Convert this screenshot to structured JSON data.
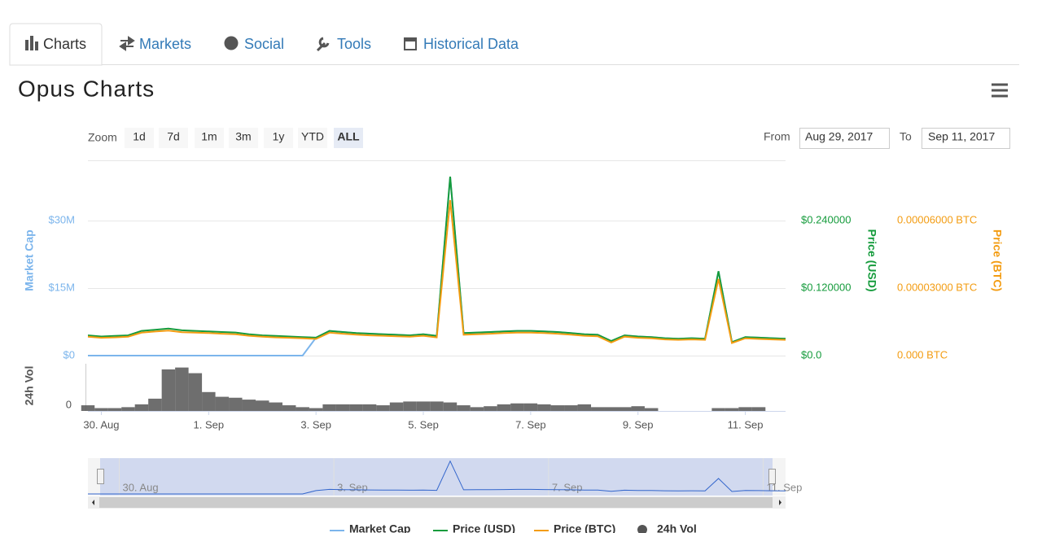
{
  "tabs": [
    "Charts",
    "Markets",
    "Social",
    "Tools",
    "Historical Data"
  ],
  "title": "Opus Charts",
  "zoom": {
    "label": "Zoom",
    "buttons": [
      "1d",
      "7d",
      "1m",
      "3m",
      "1y",
      "YTD",
      "ALL"
    ]
  },
  "range": {
    "from_label": "From",
    "from": "Aug 29, 2017",
    "to_label": "To",
    "to": "Sep 11, 2017"
  },
  "chart_data": {
    "type": "line",
    "grid": true,
    "ylabel": "Market Cap",
    "y2label": "Price (USD)",
    "y3label": "Price (BTC)",
    "y4label": "24h Vol",
    "categories": [
      null,
      "30. Aug",
      null,
      null,
      null,
      null,
      null,
      null,
      null,
      "1. Sep",
      null,
      null,
      null,
      null,
      null,
      null,
      null,
      "3. Sep",
      null,
      null,
      null,
      null,
      null,
      null,
      null,
      "5. Sep",
      null,
      null,
      null,
      null,
      null,
      null,
      null,
      "7. Sep",
      null,
      null,
      null,
      null,
      null,
      null,
      null,
      "9. Sep",
      null,
      null,
      null,
      null,
      null,
      null,
      null,
      "11. Sep",
      null,
      null,
      null
    ],
    "ylim": [
      0,
      43400000
    ],
    "yticks": [
      {
        "value": 0,
        "label": "$0"
      },
      {
        "value": 15000000,
        "label": "$15M"
      },
      {
        "value": 30000000,
        "label": "$30M"
      }
    ],
    "y2lim": [
      0,
      0.347
    ],
    "y2ticks": [
      {
        "value": 0,
        "label": "$0.0"
      },
      {
        "value": 0.12,
        "label": "$0.120000"
      },
      {
        "value": 0.24,
        "label": "$0.240000"
      }
    ],
    "y3lim": [
      0,
      8.67e-05
    ],
    "y3ticks": [
      {
        "value": 0,
        "label": "0.000 BTC"
      },
      {
        "value": 3e-05,
        "label": "0.00003000 BTC"
      },
      {
        "value": 6e-05,
        "label": "0.00006000 BTC"
      }
    ],
    "y4lim": [
      0,
      100
    ],
    "y4ticks": [
      0
    ],
    "series": [
      {
        "name": "Market Cap",
        "color": "#7cb5ec",
        "axis": "y",
        "values": [
          0,
          0,
          0,
          0,
          0,
          0,
          0,
          0,
          0,
          0,
          0,
          0,
          0,
          0,
          0,
          0,
          0,
          4000000,
          5500000,
          5250000,
          5000000,
          4875000,
          4750000,
          4625000,
          4500000,
          4750000,
          4375000,
          39750000,
          5000000,
          5125000,
          5250000,
          5375000,
          5500000,
          5500000,
          5375000,
          5250000,
          5000000,
          4750000,
          4625000,
          3250000,
          4500000,
          4250000,
          4125000,
          3875000,
          3750000,
          3875000,
          3750000,
          18750000,
          3000000,
          4125000,
          4000000,
          3875000,
          3750000
        ]
      },
      {
        "name": "Price (USD)",
        "color": "#159b3c",
        "axis": "y2",
        "values": [
          0.036,
          0.034,
          0.035,
          0.036,
          0.044,
          0.046,
          0.048,
          0.045,
          0.044,
          0.043,
          0.042,
          0.041,
          0.038,
          0.036,
          0.035,
          0.034,
          0.033,
          0.032,
          0.044,
          0.042,
          0.04,
          0.039,
          0.038,
          0.037,
          0.036,
          0.038,
          0.035,
          0.318,
          0.04,
          0.041,
          0.042,
          0.043,
          0.044,
          0.044,
          0.043,
          0.042,
          0.04,
          0.038,
          0.037,
          0.026,
          0.036,
          0.034,
          0.033,
          0.031,
          0.03,
          0.031,
          0.03,
          0.15,
          0.024,
          0.033,
          0.032,
          0.031,
          0.03
        ]
      },
      {
        "name": "Price (BTC)",
        "color": "#f39c12",
        "axis": "y3",
        "values": [
          8.4e-06,
          7.9e-06,
          8.1e-06,
          8.4e-06,
          1.02e-05,
          1.07e-05,
          1.11e-05,
          1.04e-05,
          1.02e-05,
          1e-05,
          9.7e-06,
          9.5e-06,
          8.8e-06,
          8.4e-06,
          8.1e-06,
          7.9e-06,
          7.7e-06,
          7.4e-06,
          1.02e-05,
          9.7e-06,
          9.3e-06,
          9e-06,
          8.8e-06,
          8.6e-06,
          8.4e-06,
          8.8e-06,
          8.1e-06,
          6.9e-05,
          9.3e-06,
          9.5e-06,
          9.7e-06,
          1e-05,
          1.02e-05,
          1.02e-05,
          1e-05,
          9.7e-06,
          9.3e-06,
          8.8e-06,
          8.6e-06,
          5.8e-06,
          8.4e-06,
          7.9e-06,
          7.7e-06,
          7.2e-06,
          7e-06,
          7.2e-06,
          7e-06,
          3.4e-05,
          5.6e-06,
          7.7e-06,
          7.4e-06,
          7.2e-06,
          7e-06
        ]
      },
      {
        "name": "24h Vol",
        "color": "#555555",
        "axis": "y4",
        "type": "bar",
        "values": [
          12,
          6,
          6,
          8,
          14,
          26,
          88,
          92,
          80,
          40,
          30,
          28,
          24,
          22,
          18,
          12,
          8,
          6,
          14,
          14,
          14,
          14,
          12,
          18,
          20,
          20,
          20,
          18,
          12,
          8,
          10,
          14,
          16,
          16,
          14,
          12,
          12,
          14,
          8,
          8,
          8,
          10,
          6,
          null,
          null,
          null,
          null,
          6,
          6,
          8,
          8,
          null,
          null
        ]
      }
    ]
  }
}
